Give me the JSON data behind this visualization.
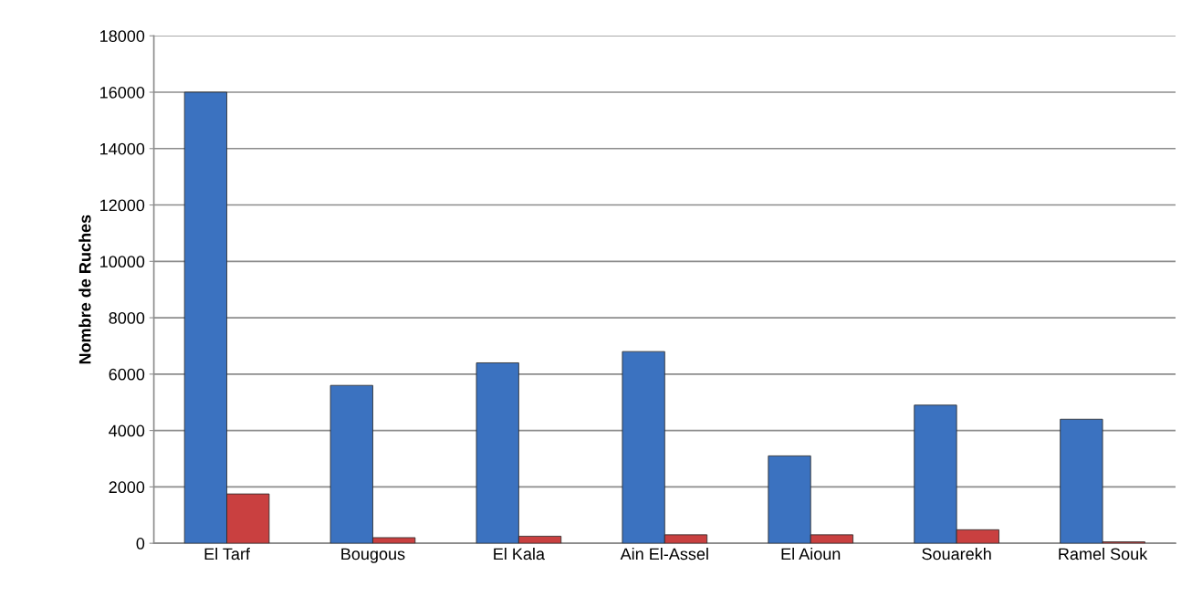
{
  "chart_data": {
    "type": "bar",
    "ylabel": "Nombre de Ruches",
    "categories": [
      "El Tarf",
      "Bougous",
      "El Kala",
      "Ain El-Assel",
      "El Aioun",
      "Souarekh",
      "Ramel Souk"
    ],
    "series": [
      {
        "color": "#3b72c0",
        "values": [
          16000,
          5600,
          6400,
          6800,
          3100,
          4900,
          4400
        ]
      },
      {
        "color": "#c94040",
        "values": [
          1750,
          200,
          250,
          300,
          300,
          480,
          50
        ]
      }
    ],
    "ylim": [
      0,
      18000
    ],
    "yticks": [
      0,
      2000,
      4000,
      6000,
      8000,
      10000,
      12000,
      14000,
      16000,
      18000
    ],
    "grid": "y",
    "legend": false
  }
}
